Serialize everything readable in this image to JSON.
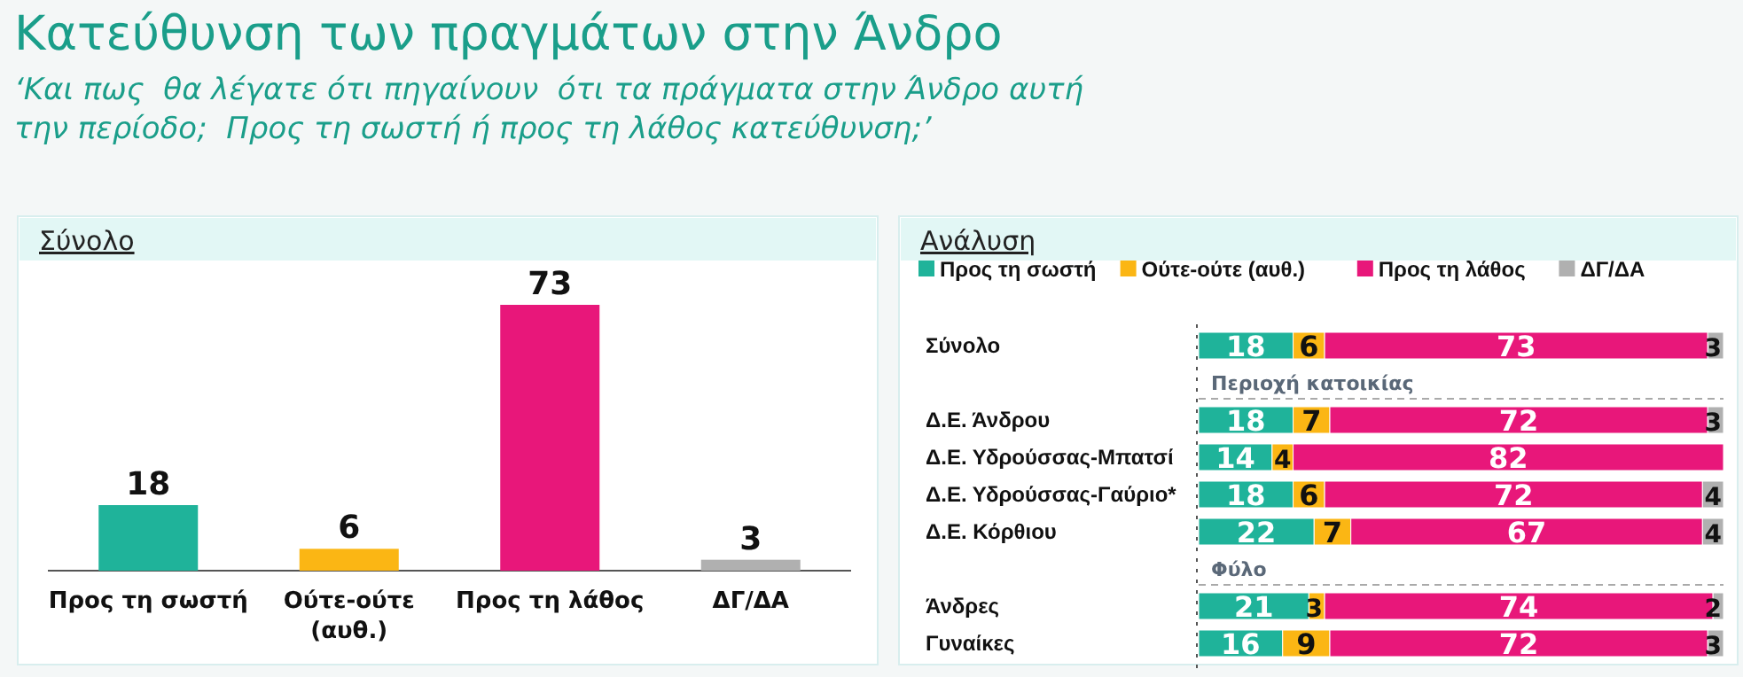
{
  "chart_data": [
    {
      "type": "bar",
      "title": "Κατεύθυνση των πραγμάτων στην Άνδρο",
      "subtitle": "‘Και πως  θα λέγατε ότι πηγαίνουν  ότι τα πράγματα στην Άνδρο αυτή την περίοδο;  Προς τη σωστή ή προς τη λάθος κατεύθυνση;’",
      "annotations": [
        "Σύνολο"
      ],
      "categories": [
        "Προς τη σωστή",
        "Ούτε-ούτε (αυθ.)",
        "Προς τη λάθος",
        "ΔΓ/ΔΑ"
      ],
      "values": [
        18,
        6,
        73,
        3
      ],
      "colors": [
        "#1fb39a",
        "#fbb614",
        "#e8177a",
        "#b0b0b0"
      ],
      "data_labels": true
    },
    {
      "type": "bar",
      "orientation": "horizontal",
      "stacked": true,
      "title": "Ανάλυση",
      "legend": "top",
      "data_labels": true,
      "categories": [
        "Σύνολο",
        null,
        "Δ.Ε. Άνδρου",
        "Δ.Ε. Υδρούσσας-Μπατσί",
        "Δ.Ε. Υδρούσσας-Γαύριο*",
        "Δ.Ε. Κόρθιου",
        null,
        "Άνδρες",
        "Γυναίκες"
      ],
      "annotations": [
        "Περιοχή κατοικίας",
        "Φύλο"
      ],
      "series": [
        {
          "name": "Προς τη σωστή",
          "color": "#1fb39a",
          "values": [
            18,
            null,
            18,
            14,
            18,
            22,
            null,
            21,
            16
          ]
        },
        {
          "name": "Ούτε-ούτε (αυθ.)",
          "color": "#fbb614",
          "values": [
            6,
            null,
            7,
            4,
            6,
            7,
            null,
            3,
            9
          ]
        },
        {
          "name": "Προς τη λάθος",
          "color": "#e8177a",
          "values": [
            73,
            null,
            72,
            82,
            72,
            67,
            null,
            74,
            72
          ]
        },
        {
          "name": "ΔΓ/ΔΑ",
          "color": "#b0b0b0",
          "values": [
            3,
            null,
            3,
            null,
            4,
            4,
            null,
            2,
            3
          ]
        }
      ]
    }
  ]
}
